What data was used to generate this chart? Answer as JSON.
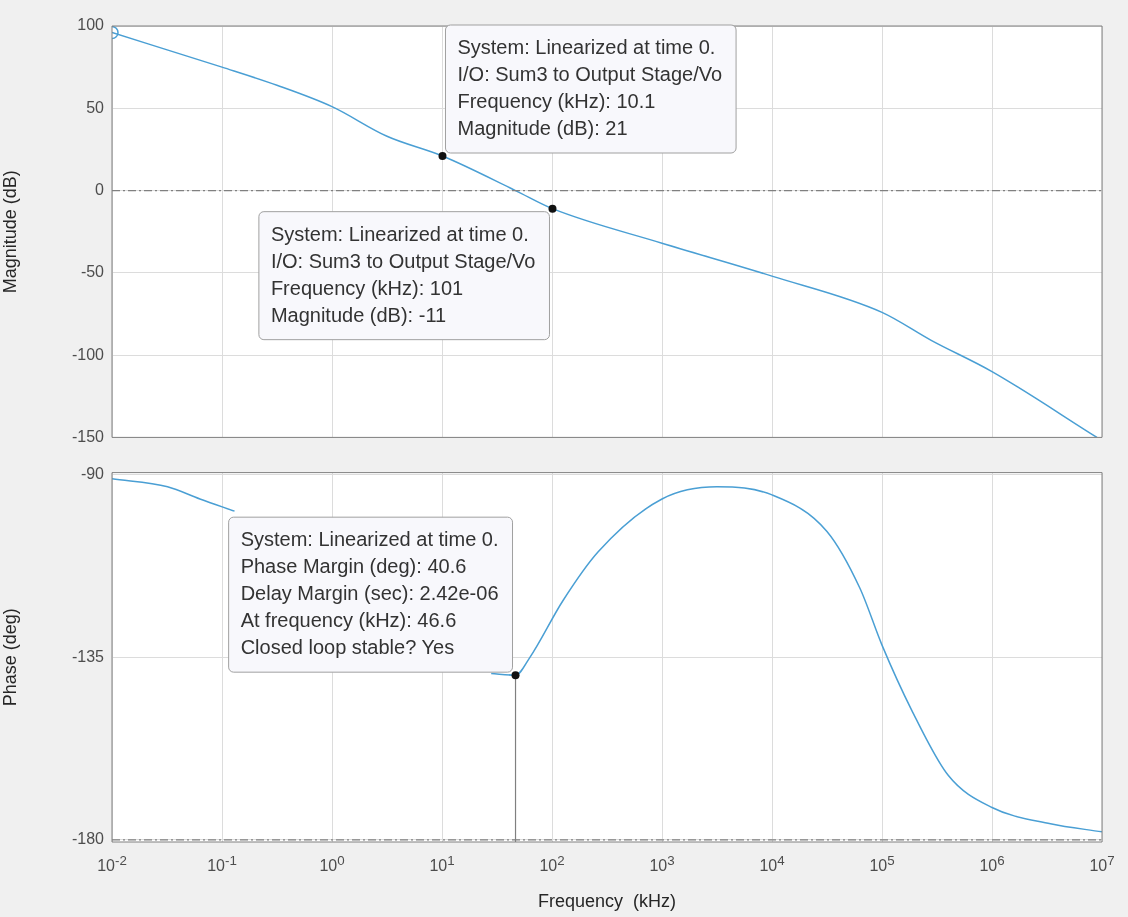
{
  "chart_data": [
    {
      "type": "line",
      "ylabel": "Magnitude (dB)",
      "log": "x",
      "grid": true,
      "tick_labels": "y",
      "xlim": [
        0.01,
        10000000
      ],
      "ylim": [
        -150,
        100
      ],
      "xticks": [
        0.01,
        0.1,
        1,
        10,
        100,
        1000,
        10000,
        100000,
        1000000,
        10000000
      ],
      "yticks": [
        -150,
        -100,
        -50,
        0,
        50,
        100
      ],
      "series": [
        {
          "type": "line",
          "color": "#4a9fd4",
          "marker": "none",
          "x": [
            0.01,
            0.1,
            0.316,
            1,
            3.16,
            10.1,
            46.6,
            101,
            1000,
            10000,
            100000,
            280000,
            1000000,
            9000000
          ],
          "values": [
            96,
            75,
            64,
            51,
            33,
            21,
            0,
            -11,
            -32,
            -52,
            -74,
            -91,
            -110,
            -150
          ]
        },
        {
          "type": "scatter",
          "color": "#4a9fd4",
          "marker": "circle",
          "x": [
            0.01
          ],
          "values": [
            96
          ]
        }
      ],
      "ref_lines": [
        {
          "axis": "y",
          "value": 0,
          "color": "#808080",
          "line_style": "dashed"
        }
      ],
      "annotations": [
        {
          "text": "System: Linearized at time 0.\nI/O: Sum3 to Output Stage/Vo\nFrequency (kHz): 10.1\nMagnitude (dB): 21",
          "x": 10.1,
          "y": 21
        },
        {
          "text": "System: Linearized at time 0.\nI/O: Sum3 to Output Stage/Vo\nFrequency (kHz): 101\nMagnitude (dB): -11",
          "x": 101,
          "y": -11
        }
      ]
    },
    {
      "type": "line",
      "xlabel": "Frequency  (kHz)",
      "ylabel": "Phase (deg)",
      "log": "x",
      "grid": true,
      "xlim": [
        0.01,
        10000000
      ],
      "ylim": [
        -180.5,
        -89.5
      ],
      "xticks": [
        {
          "value": 0.01,
          "label": "10$^{-2}$"
        },
        {
          "value": 0.1,
          "label": "10$^{-1}$"
        },
        {
          "value": 1,
          "label": "10$^{0}$"
        },
        {
          "value": 10,
          "label": "10$^{1}$"
        },
        {
          "value": 100,
          "label": "10$^{2}$"
        },
        {
          "value": 1000,
          "label": "10$^{3}$"
        },
        {
          "value": 10000,
          "label": "10$^{4}$"
        },
        {
          "value": 100000,
          "label": "10$^{5}$"
        },
        {
          "value": 1000000,
          "label": "10$^{6}$"
        },
        {
          "value": 10000000,
          "label": "10$^{7}$"
        }
      ],
      "yticks": [
        -180,
        -135,
        -90
      ],
      "series": [
        {
          "type": "line",
          "color": "#4a9fd4",
          "marker": "none",
          "x": [
            0.01,
            0.032,
            0.063,
            0.13,
            1,
            28,
            46.6,
            63,
            126,
            263,
            1000,
            3160,
            10000,
            31600,
            63000,
            100000,
            186000,
            398000,
            1000000,
            3400000,
            10000000
          ],
          "values": [
            -91,
            -93,
            -96,
            -99,
            null,
            -139,
            -139.4,
            -135,
            -121,
            -109,
            -96,
            -93,
            -95,
            -104,
            -118,
            -132,
            -148,
            -164,
            -172,
            -176,
            -178
          ]
        }
      ],
      "ref_lines": [
        {
          "axis": "y",
          "value": -180,
          "color": "#808080",
          "line_style": "dashed"
        },
        {
          "axis": "x",
          "value": 46.6,
          "color": "#808080",
          "line_style": "solid"
        }
      ],
      "annotations": [
        {
          "text": "System: Linearized at time 0.\nPhase Margin (deg): 40.6\nDelay Margin (sec): 2.42e-06\nAt frequency (kHz): 46.6\nClosed loop stable? Yes",
          "x": 46.6,
          "y": -139.4
        }
      ]
    }
  ]
}
